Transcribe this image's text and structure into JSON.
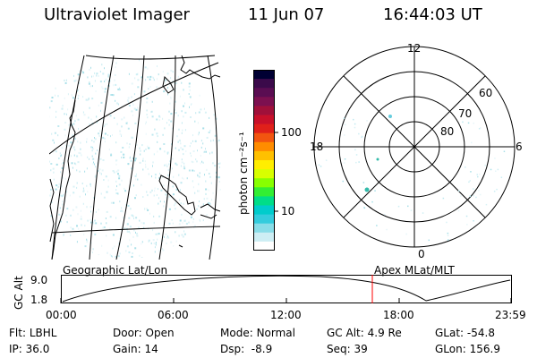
{
  "header": {
    "title": "Ultraviolet Imager",
    "date": "11 Jun 07",
    "time": "16:44:03 UT"
  },
  "colorbar": {
    "label": "photon cm⁻²s⁻¹",
    "ticks": [
      "100",
      "10"
    ],
    "colors": [
      "#000033",
      "#3b0a4a",
      "#5a0d52",
      "#7c1050",
      "#a0103a",
      "#c8102a",
      "#e0201a",
      "#f25510",
      "#ff8c00",
      "#ffc000",
      "#ffee00",
      "#d8ff00",
      "#88ff00",
      "#33ee33",
      "#00dd88",
      "#00cccc",
      "#33ccdd",
      "#88dde8",
      "#cdeef4",
      "#ffffff"
    ]
  },
  "polar_plot": {
    "mlt_labels": {
      "top": "12",
      "left": "18",
      "right": "6",
      "bottom": "0"
    },
    "lat_labels": [
      "60",
      "70",
      "80"
    ]
  },
  "timeline": {
    "left_label": "Geographic Lat/Lon",
    "right_label": "Apex MLat/MLT",
    "y_axis_title": "GC Alt",
    "y_max": "9.0",
    "y_min": "1.8",
    "x_ticks": [
      "00:00",
      "06:00",
      "12:00",
      "18:00",
      "23:59"
    ],
    "marker_color": "#ff0000"
  },
  "status": {
    "row1": [
      {
        "label": "Flt:",
        "value": "LBHL"
      },
      {
        "label": "Door:",
        "value": "Open"
      },
      {
        "label": "Mode:",
        "value": "Normal"
      },
      {
        "label": "GC Alt:",
        "value": "4.9 Re"
      },
      {
        "label": "GLat:",
        "value": "-54.8"
      }
    ],
    "row2": [
      {
        "label": "IP:",
        "value": "36.0"
      },
      {
        "label": "Gain:",
        "value": "14"
      },
      {
        "label": "Dsp:",
        "value": "-8.9"
      },
      {
        "label": "Seq:",
        "value": "39"
      },
      {
        "label": "GLon:",
        "value": "156.9"
      }
    ]
  }
}
